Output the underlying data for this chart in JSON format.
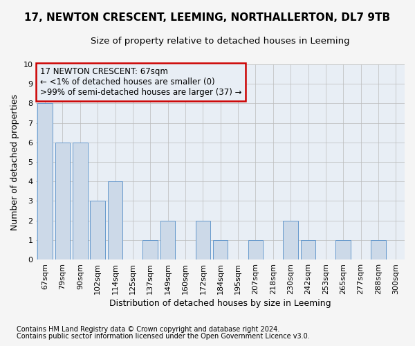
{
  "title": "17, NEWTON CRESCENT, LEEMING, NORTHALLERTON, DL7 9TB",
  "subtitle": "Size of property relative to detached houses in Leeming",
  "xlabel": "Distribution of detached houses by size in Leeming",
  "ylabel": "Number of detached properties",
  "categories": [
    "67sqm",
    "79sqm",
    "90sqm",
    "102sqm",
    "114sqm",
    "125sqm",
    "137sqm",
    "149sqm",
    "160sqm",
    "172sqm",
    "184sqm",
    "195sqm",
    "207sqm",
    "218sqm",
    "230sqm",
    "242sqm",
    "253sqm",
    "265sqm",
    "277sqm",
    "288sqm",
    "300sqm"
  ],
  "values": [
    8,
    6,
    6,
    3,
    4,
    0,
    1,
    2,
    0,
    2,
    1,
    0,
    1,
    0,
    2,
    1,
    0,
    1,
    0,
    1,
    0
  ],
  "bar_color": "#ccd9e8",
  "bar_edge_color": "#6699cc",
  "annotation_box_color": "#cc0000",
  "annotation_lines": [
    "17 NEWTON CRESCENT: 67sqm",
    "← <1% of detached houses are smaller (0)",
    ">99% of semi-detached houses are larger (37) →"
  ],
  "ylim": [
    0,
    10
  ],
  "yticks": [
    0,
    1,
    2,
    3,
    4,
    5,
    6,
    7,
    8,
    9,
    10
  ],
  "footnote1": "Contains HM Land Registry data © Crown copyright and database right 2024.",
  "footnote2": "Contains public sector information licensed under the Open Government Licence v3.0.",
  "background_color": "#f5f5f5",
  "plot_bg_color": "#e8eef5",
  "grid_color": "#bbbbbb",
  "title_fontsize": 11,
  "subtitle_fontsize": 9.5,
  "xlabel_fontsize": 9,
  "ylabel_fontsize": 9,
  "tick_fontsize": 8,
  "annotation_fontsize": 8.5,
  "footnote_fontsize": 7
}
